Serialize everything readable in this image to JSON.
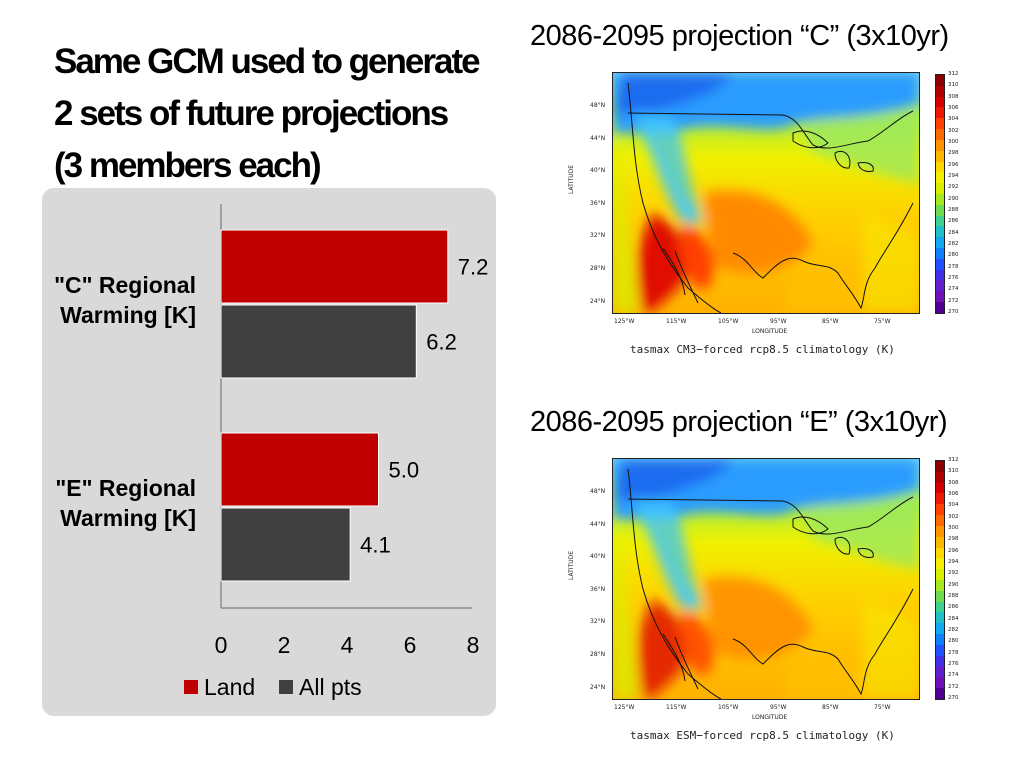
{
  "title_lines": [
    "Same GCM used to generate",
    "2 sets of future projections",
    "(3 members each)"
  ],
  "chart_data": {
    "type": "bar",
    "orientation": "horizontal",
    "categories": [
      "\"C\" Regional Warming [K]",
      "\"E\" Regional Warming [K]"
    ],
    "category_lines": [
      [
        "\"C\" Regional",
        "Warming [K]"
      ],
      [
        "\"E\" Regional",
        "Warming [K]"
      ]
    ],
    "series": [
      {
        "name": "Land",
        "values": [
          7.2,
          5.0
        ],
        "color": "#c00000"
      },
      {
        "name": "All pts",
        "values": [
          6.2,
          4.1
        ],
        "color": "#404040"
      }
    ],
    "data_labels": [
      [
        "7.2",
        "6.2"
      ],
      [
        "5.0",
        "4.1"
      ]
    ],
    "xlim": [
      0,
      8
    ],
    "x_ticks": [
      "0",
      "2",
      "4",
      "6",
      "8"
    ],
    "legend_position": "bottom",
    "grid": false
  },
  "maps": [
    {
      "title": "2086-2095 projection “C” (3x10yr)",
      "caption": "tasmax CM3−forced rcp8.5 climatology (K)",
      "variant": "C"
    },
    {
      "title": "2086-2095 projection “E” (3x10yr)",
      "caption": "tasmax ESM−forced rcp8.5 climatology (K)",
      "variant": "E"
    }
  ],
  "map_axes": {
    "lat_ticks": [
      "48°N",
      "44°N",
      "40°N",
      "36°N",
      "32°N",
      "28°N",
      "24°N"
    ],
    "lon_ticks": [
      "125°W",
      "115°W",
      "105°W",
      "95°W",
      "85°W",
      "75°W"
    ],
    "xlabel": "LONGITUDE",
    "ylabel": "LATITUDE"
  },
  "colorbar": {
    "labels": [
      "312",
      "310",
      "308",
      "306",
      "304",
      "302",
      "300",
      "298",
      "296",
      "294",
      "292",
      "290",
      "288",
      "286",
      "284",
      "282",
      "280",
      "278",
      "276",
      "274",
      "272",
      "270"
    ],
    "colors": [
      "#8b0000",
      "#b00000",
      "#d40000",
      "#ee1a00",
      "#ff4000",
      "#ff6a00",
      "#ff9400",
      "#ffb800",
      "#ffd800",
      "#f5f000",
      "#d8f000",
      "#a8e820",
      "#70dc50",
      "#40d090",
      "#20c0c8",
      "#10a8f0",
      "#1080ff",
      "#2050ff",
      "#4030e8",
      "#6020d0",
      "#7010b8",
      "#500090"
    ]
  }
}
